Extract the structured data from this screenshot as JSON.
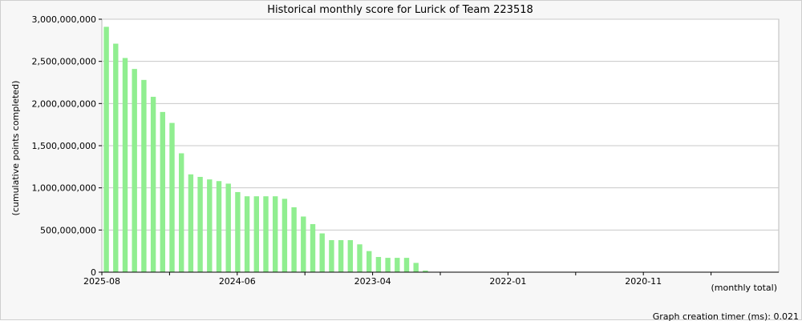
{
  "chart_data": {
    "type": "bar",
    "title": "Historical monthly score for Lurick of Team 223518",
    "ylabel": "(cumulative points completed)",
    "xlabel": "(monthly total)",
    "ylim": [
      0,
      3000000000
    ],
    "y_ticks": [
      0,
      500000000,
      1000000000,
      1500000000,
      2000000000,
      2500000000,
      3000000000
    ],
    "y_tick_labels": [
      "0",
      "500,000,000",
      "1,000,000,000",
      "1,500,000,000",
      "2,000,000,000",
      "2,500,000,000",
      "3,000,000,000"
    ],
    "x_tick_labels": [
      "2025-08",
      "2024-06",
      "2023-04",
      "2022-01",
      "2020-11"
    ],
    "grid": true,
    "bar_color": "#90ee90",
    "series": [
      {
        "values": [
          2910000000,
          2710000000,
          2540000000,
          2410000000,
          2280000000,
          2080000000,
          1900000000,
          1770000000,
          1410000000,
          1160000000,
          1130000000,
          1100000000,
          1080000000,
          1050000000,
          950000000,
          900000000,
          900000000,
          900000000,
          900000000,
          870000000,
          770000000,
          660000000,
          570000000,
          460000000,
          380000000,
          380000000,
          380000000,
          330000000,
          250000000,
          180000000,
          170000000,
          170000000,
          170000000,
          110000000,
          20000000
        ]
      }
    ]
  },
  "footer": {
    "timer_text": "Graph creation timer (ms): 0.021"
  },
  "colors": {
    "bar": "#90ee90",
    "grid": "#c8c8c8",
    "plot_bg": "#ffffff",
    "frame_bg": "#f7f7f7"
  }
}
